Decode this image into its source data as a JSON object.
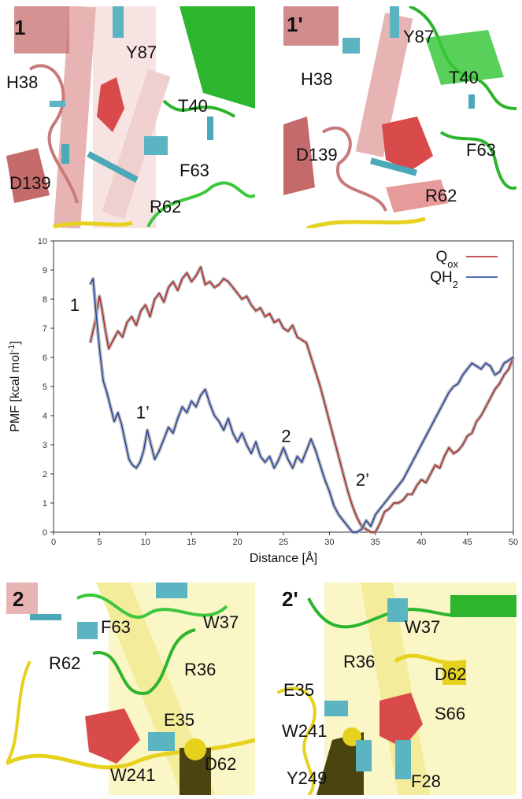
{
  "panels": {
    "p1": {
      "corner": "1",
      "labels": [
        "H38",
        "Y87",
        "T40",
        "D139",
        "F63",
        "R62"
      ]
    },
    "p1p": {
      "corner": "1'",
      "labels": [
        "H38",
        "Y87",
        "T40",
        "D139",
        "F63",
        "R62"
      ]
    },
    "p2": {
      "corner": "2",
      "labels": [
        "F63",
        "W37",
        "R62",
        "R36",
        "E35",
        "W241",
        "D62"
      ]
    },
    "p2p": {
      "corner": "2'",
      "labels": [
        "W37",
        "R36",
        "D62",
        "E35",
        "S66",
        "W241",
        "Y249",
        "F28"
      ]
    }
  },
  "chart_data": {
    "type": "line",
    "title": "",
    "xlabel": "Distance [Å]",
    "ylabel": "PMF [kcal mol-1]",
    "xlim": [
      0,
      50
    ],
    "ylim": [
      0,
      10
    ],
    "xticks": [
      0,
      5,
      10,
      15,
      20,
      25,
      30,
      35,
      40,
      45,
      50
    ],
    "yticks": [
      0,
      1,
      2,
      3,
      4,
      5,
      6,
      7,
      8,
      9,
      10
    ],
    "legend_placement": "top-right",
    "series": [
      {
        "name": "Qox",
        "color": "#b22222",
        "x": [
          4.0,
          4.5,
          5.0,
          5.3,
          5.6,
          6.0,
          6.5,
          7.0,
          7.5,
          8.0,
          8.5,
          9.0,
          9.5,
          10.0,
          10.5,
          11.0,
          11.5,
          12.0,
          12.5,
          13.0,
          13.5,
          14.0,
          14.5,
          15.0,
          15.5,
          16.0,
          16.5,
          17.0,
          17.5,
          18.0,
          18.5,
          19.0,
          19.5,
          20.0,
          20.5,
          21.0,
          21.5,
          22.0,
          22.5,
          23.0,
          23.5,
          24.0,
          24.5,
          25.0,
          25.5,
          26.0,
          26.5,
          27.0,
          27.5,
          28.0,
          28.5,
          29.0,
          29.5,
          30.0,
          30.5,
          31.0,
          31.5,
          32.0,
          32.5,
          33.0,
          33.5,
          34.0,
          34.5,
          35.0,
          35.5,
          36.0,
          36.5,
          37.0,
          37.5,
          38.0,
          38.5,
          39.0,
          39.5,
          40.0,
          40.5,
          41.0,
          41.5,
          42.0,
          42.5,
          43.0,
          43.5,
          44.0,
          44.5,
          45.0,
          45.5,
          46.0,
          46.5,
          47.0,
          47.5,
          48.0,
          48.5,
          49.0,
          49.5,
          50.0
        ],
        "y": [
          6.5,
          7.2,
          8.1,
          7.6,
          7.0,
          6.3,
          6.6,
          6.9,
          6.7,
          7.2,
          7.4,
          7.1,
          7.6,
          7.8,
          7.4,
          8.0,
          8.2,
          7.9,
          8.4,
          8.6,
          8.3,
          8.7,
          8.9,
          8.6,
          8.8,
          9.1,
          8.5,
          8.6,
          8.4,
          8.5,
          8.7,
          8.6,
          8.4,
          8.2,
          8.0,
          8.1,
          7.8,
          7.6,
          7.7,
          7.4,
          7.5,
          7.2,
          7.3,
          7.0,
          6.9,
          7.1,
          6.7,
          6.6,
          6.5,
          6.0,
          5.5,
          5.0,
          4.4,
          3.8,
          3.2,
          2.6,
          2.0,
          1.4,
          0.9,
          0.5,
          0.2,
          0.1,
          0.0,
          0.0,
          0.3,
          0.7,
          0.8,
          1.0,
          1.0,
          1.1,
          1.3,
          1.3,
          1.6,
          1.8,
          1.7,
          2.0,
          2.3,
          2.2,
          2.6,
          2.9,
          2.7,
          2.8,
          3.0,
          3.3,
          3.4,
          3.8,
          4.0,
          4.3,
          4.6,
          4.9,
          5.1,
          5.4,
          5.6,
          6.0
        ]
      },
      {
        "name": "QH2",
        "color": "#1f3fa0",
        "x": [
          4.0,
          4.3,
          4.6,
          5.0,
          5.4,
          5.8,
          6.2,
          6.6,
          7.0,
          7.4,
          7.8,
          8.2,
          8.6,
          9.0,
          9.4,
          9.8,
          10.2,
          10.6,
          11.0,
          11.5,
          12.0,
          12.5,
          13.0,
          13.5,
          14.0,
          14.5,
          15.0,
          15.5,
          16.0,
          16.5,
          17.0,
          17.5,
          18.0,
          18.5,
          19.0,
          19.5,
          20.0,
          20.5,
          21.0,
          21.5,
          22.0,
          22.5,
          23.0,
          23.5,
          24.0,
          24.5,
          25.0,
          25.5,
          26.0,
          26.5,
          27.0,
          27.5,
          28.0,
          28.5,
          29.0,
          29.5,
          30.0,
          30.5,
          31.0,
          31.5,
          32.0,
          32.5,
          33.0,
          33.5,
          34.0,
          34.5,
          35.0,
          35.5,
          36.0,
          36.5,
          37.0,
          37.5,
          38.0,
          38.5,
          39.0,
          39.5,
          40.0,
          40.5,
          41.0,
          41.5,
          42.0,
          42.5,
          43.0,
          43.5,
          44.0,
          44.5,
          45.0,
          45.5,
          46.0,
          46.5,
          47.0,
          47.5,
          48.0,
          48.5,
          49.0,
          49.5,
          50.0
        ],
        "y": [
          8.5,
          8.7,
          7.6,
          6.3,
          5.2,
          4.8,
          4.3,
          3.8,
          4.1,
          3.7,
          3.1,
          2.5,
          2.3,
          2.2,
          2.4,
          2.8,
          3.5,
          3.0,
          2.5,
          2.8,
          3.2,
          3.6,
          3.4,
          3.9,
          4.3,
          4.1,
          4.5,
          4.3,
          4.7,
          4.9,
          4.4,
          4.0,
          3.8,
          3.5,
          3.9,
          3.4,
          3.1,
          3.4,
          3.0,
          2.7,
          3.1,
          2.6,
          2.4,
          2.6,
          2.2,
          2.5,
          2.9,
          2.5,
          2.2,
          2.6,
          2.4,
          2.8,
          3.2,
          2.8,
          2.3,
          1.8,
          1.4,
          0.9,
          0.6,
          0.4,
          0.2,
          0.0,
          0.0,
          0.1,
          0.4,
          0.2,
          0.6,
          0.8,
          1.0,
          1.2,
          1.4,
          1.6,
          1.8,
          2.1,
          2.4,
          2.7,
          3.0,
          3.3,
          3.6,
          3.9,
          4.2,
          4.5,
          4.8,
          5.0,
          5.1,
          5.4,
          5.6,
          5.8,
          5.7,
          5.6,
          5.8,
          5.7,
          5.4,
          5.5,
          5.8,
          5.9,
          6.0
        ]
      }
    ],
    "annotations": [
      {
        "text": "1",
        "x": 2.3,
        "y": 7.6
      },
      {
        "text": "1’",
        "x": 9.7,
        "y": 3.9
      },
      {
        "text": "2",
        "x": 25.3,
        "y": 3.1
      },
      {
        "text": "2’",
        "x": 33.6,
        "y": 1.6
      }
    ]
  }
}
